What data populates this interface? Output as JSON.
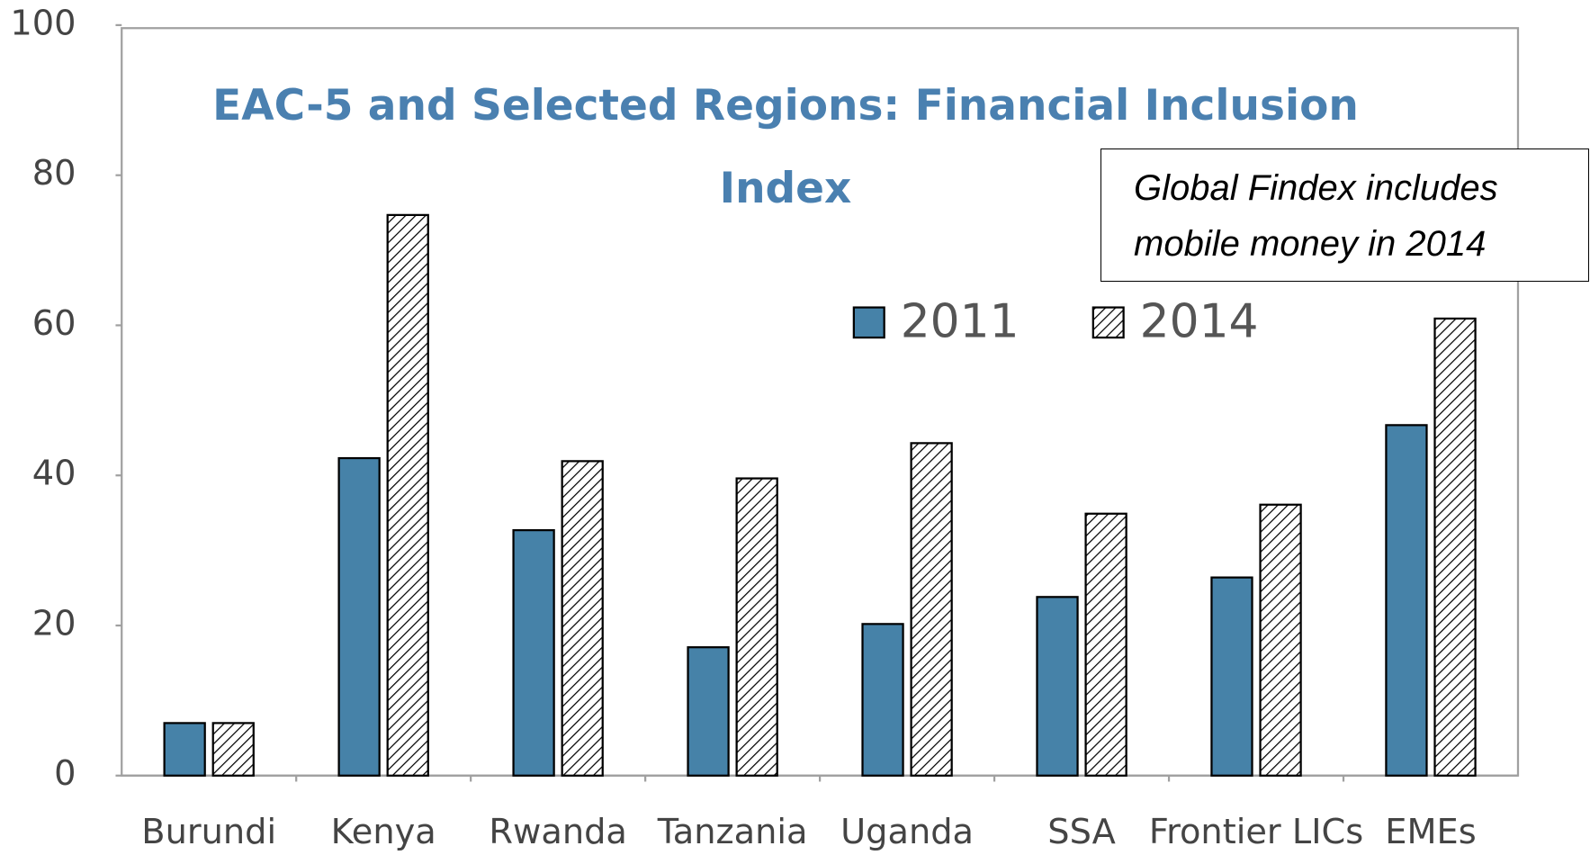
{
  "chart_data": {
    "type": "bar",
    "title": "EAC-5 and Selected Regions: Financial Inclusion Index",
    "annotation": "Global Findex includes mobile money in 2014",
    "categories": [
      "Burundi",
      "Kenya",
      "Rwanda",
      "Tanzania",
      "Uganda",
      "SSA",
      "Frontier LICs",
      "EMEs"
    ],
    "series": [
      {
        "name": "2011",
        "color": "#4682a8",
        "values": [
          7.0,
          42.3,
          32.7,
          17.1,
          20.2,
          23.8,
          26.4,
          46.7
        ]
      },
      {
        "name": "2014",
        "color": "#ffffff",
        "pattern": "hatch",
        "values": [
          7.0,
          74.7,
          41.9,
          39.6,
          44.3,
          34.9,
          36.1,
          60.9
        ]
      }
    ],
    "ylim": [
      0,
      100
    ],
    "yticks": [
      0,
      20,
      40,
      60,
      80,
      100
    ],
    "grid": false,
    "legend": "top"
  }
}
